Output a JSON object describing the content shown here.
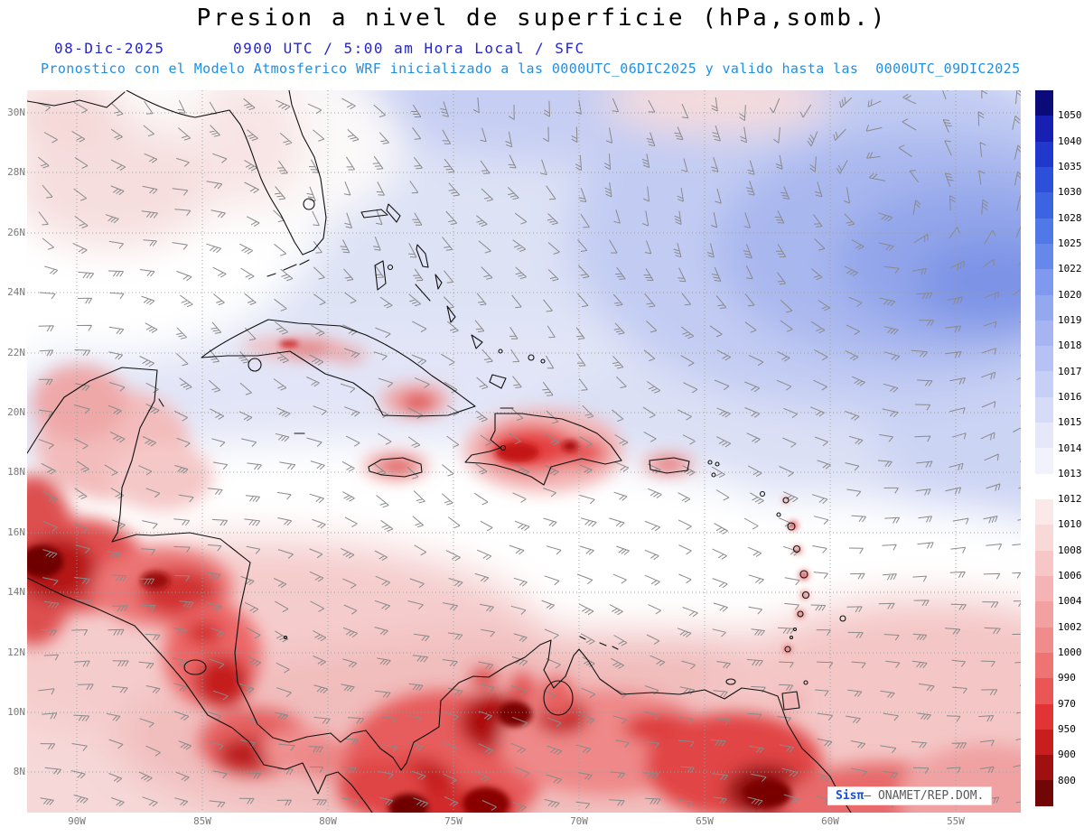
{
  "header": {
    "title": "Presion a nivel de superficie (hPa,somb.)",
    "date": "08-Dic-2025",
    "time": "0900 UTC / 5:00 am Hora Local / SFC",
    "forecast": "Pronostico con el Modelo Atmosferico WRF inicializado a las 0000UTC_06DIC2025 y valido hasta las  0000UTC_09DIC2025"
  },
  "axes": {
    "lat": [
      "30N",
      "28N",
      "26N",
      "24N",
      "22N",
      "20N",
      "18N",
      "16N",
      "14N",
      "12N",
      "10N",
      "8N"
    ],
    "lon": [
      "90W",
      "85W",
      "80W",
      "75W",
      "70W",
      "65W",
      "60W",
      "55W"
    ]
  },
  "colorbar": {
    "unit": "hPa",
    "labels": [
      "1050",
      "1040",
      "1035",
      "1030",
      "1028",
      "1025",
      "1022",
      "1020",
      "1019",
      "1018",
      "1017",
      "1016",
      "1015",
      "1014",
      "1013",
      "1012",
      "1010",
      "1008",
      "1006",
      "1004",
      "1002",
      "1000",
      "990",
      "970",
      "950",
      "900",
      "800"
    ],
    "colors": [
      "#0a0a78",
      "#1820b4",
      "#2038cc",
      "#2c50d8",
      "#3c64e0",
      "#5078e6",
      "#6688ea",
      "#8098ee",
      "#94a8f0",
      "#a6b4f2",
      "#b6c2f4",
      "#c6d0f6",
      "#d6dcf8",
      "#e6e8fa",
      "#f2f2fd",
      "#ffffff",
      "#fbe8e8",
      "#f9d8d8",
      "#f7c6c6",
      "#f5b4b4",
      "#f3a0a0",
      "#f18c8c",
      "#ee7474",
      "#ea5656",
      "#e23434",
      "#c81e1e",
      "#a01010",
      "#700606"
    ]
  },
  "watermark": {
    "brand": "Sisπ",
    "suffix": "– ONAMET/REP.DOM."
  },
  "colors": {
    "title": "#000000",
    "subtitle": "#2424d0",
    "forecast": "#1e8fe8",
    "axis": "#787878",
    "wind_barb": "#8a8a8a",
    "coastline": "#101010",
    "high_shade": "#7b93e6",
    "low_shade": "#700606"
  },
  "chart_data": {
    "type": "heatmap",
    "title": "Presion a nivel de superficie (hPa,somb.)",
    "units": "hPa",
    "valid": "08-Dic-2025 0900 UTC / 5:00 am Hora Local",
    "level": "SFC",
    "model": "WRF",
    "initialized": "0000UTC_06DIC2025",
    "valid_until": "0000UTC_09DIC2025",
    "lat_range_deg_n": [
      8,
      30
    ],
    "lon_range_deg_w": [
      90,
      55
    ],
    "shade_levels_hpa": [
      800,
      900,
      950,
      970,
      990,
      1000,
      1002,
      1004,
      1006,
      1008,
      1010,
      1012,
      1013,
      1014,
      1015,
      1016,
      1017,
      1018,
      1019,
      1020,
      1022,
      1025,
      1028,
      1030,
      1035,
      1040,
      1050
    ],
    "features": [
      {
        "name": "surface-high",
        "approx_lat_n": 25,
        "approx_lon_w": 58,
        "shade_hpa": "1020-1022"
      },
      {
        "name": "terrain-low-pressure-shading",
        "regions": "Central America, Colombia/Venezuela Andes, Hispaniola, Jamaica, Puerto Rico, Lesser Antilles",
        "shade_hpa": "1008 and below"
      },
      {
        "name": "neutral-band",
        "approx_lat_n": "14-17",
        "shade_hpa": "1013-1014"
      }
    ]
  }
}
